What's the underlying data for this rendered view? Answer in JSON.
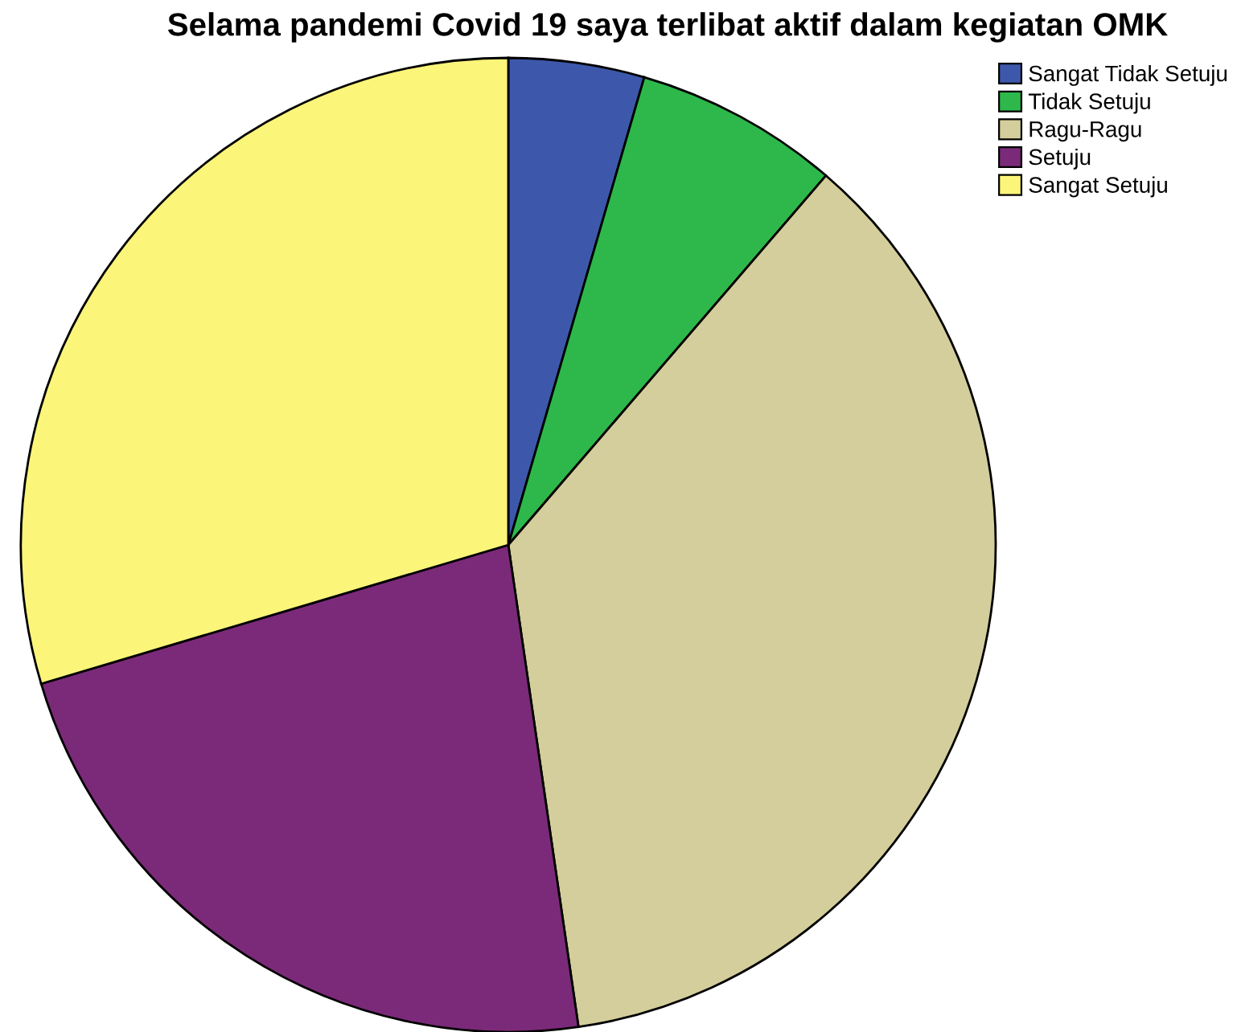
{
  "chart_data": {
    "type": "pie",
    "title": "Selama pandemi Covid 19 saya terlibat aktif dalam kegiatan OMK",
    "categories": [
      "Sangat Tidak Setuju",
      "Tidak Setuju",
      "Ragu-Ragu",
      "Setuju",
      "Sangat Setuju"
    ],
    "values": [
      4.5,
      6.8,
      36.4,
      22.7,
      29.6
    ],
    "colors": [
      "#3d58ab",
      "#2eb84b",
      "#d3ce9b",
      "#7b2a79",
      "#fbf57a"
    ],
    "legend": "top right"
  }
}
